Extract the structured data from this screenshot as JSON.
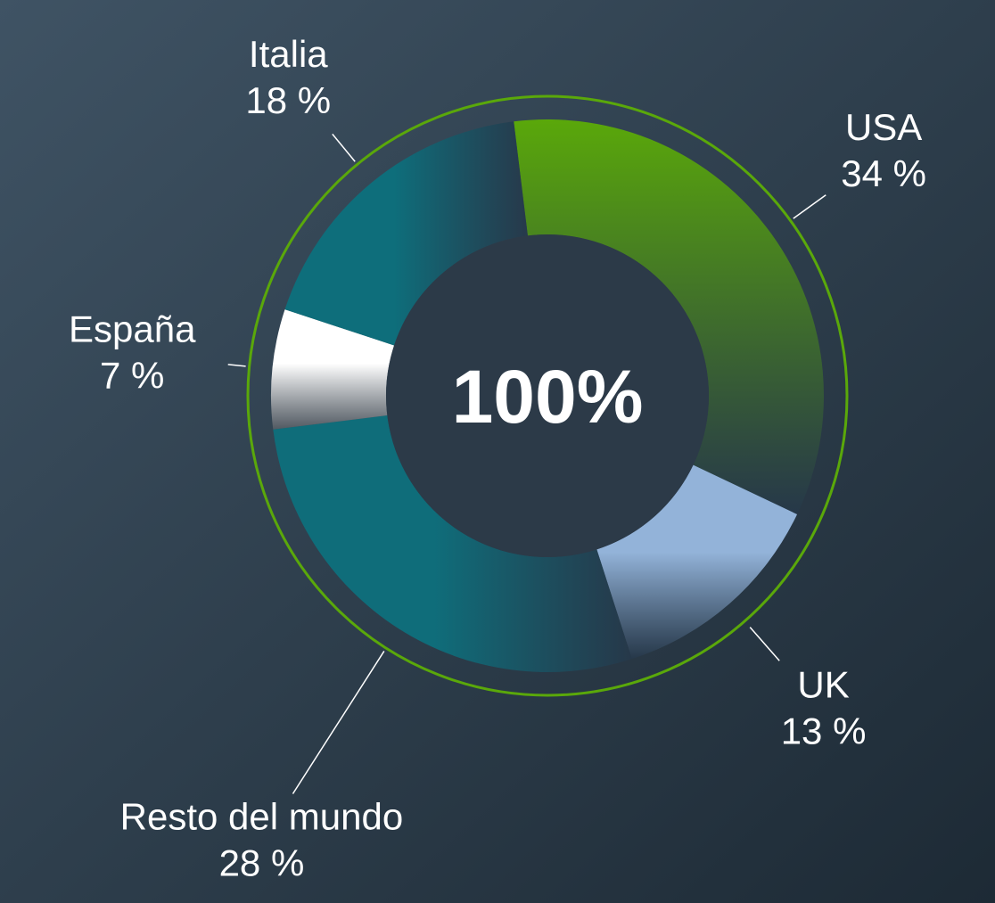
{
  "chart_data": {
    "type": "donut",
    "center_label": "100%",
    "categories": [
      "USA",
      "UK",
      "Resto del mundo",
      "España",
      "Italia"
    ],
    "values": [
      34,
      13,
      28,
      7,
      18
    ],
    "value_labels": [
      "34 %",
      "13 %",
      "28 %",
      "7 %",
      "18 %"
    ],
    "colors": [
      "#5aa80a",
      "#93b3d9",
      "#0f6d7a",
      "#ffffff",
      "#0e6e7b"
    ],
    "ring_color": "#5aa80a"
  }
}
